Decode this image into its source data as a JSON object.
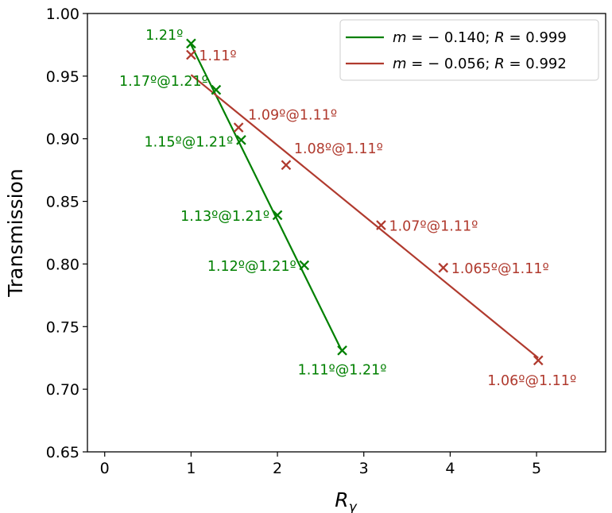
{
  "chart_data": {
    "type": "scatter",
    "title": "",
    "xlabel": "R_γ",
    "ylabel": "Transmission",
    "xlim": [
      -0.2,
      5.8
    ],
    "ylim": [
      0.65,
      1.0
    ],
    "xticks": [
      0,
      1,
      2,
      3,
      4,
      5
    ],
    "yticks": [
      0.65,
      0.7,
      0.75,
      0.8,
      0.85,
      0.9,
      0.95,
      1.0
    ],
    "xtick_labels": [
      "0",
      "1",
      "2",
      "3",
      "4",
      "5"
    ],
    "ytick_labels": [
      "0.65",
      "0.70",
      "0.75",
      "0.80",
      "0.85",
      "0.90",
      "0.95",
      "1.00"
    ],
    "grid": false,
    "legend_position": "top-right",
    "series": [
      {
        "name": "m = −0.140;  R = 0.999",
        "legend": {
          "m_label": "m",
          "m_value": "− 0.140;",
          "r_label": "R",
          "r_value": "0.999"
        },
        "color": "#008000",
        "points": [
          {
            "x": 1.0,
            "y": 0.976,
            "label": "1.21º"
          },
          {
            "x": 1.29,
            "y": 0.939,
            "label": "1.17º@1.21º"
          },
          {
            "x": 1.58,
            "y": 0.899,
            "label": "1.15º@1.21º"
          },
          {
            "x": 2.0,
            "y": 0.839,
            "label": "1.13º@1.21º"
          },
          {
            "x": 2.31,
            "y": 0.799,
            "label": "1.12º@1.21º"
          },
          {
            "x": 2.75,
            "y": 0.731,
            "label": "1.11º@1.21º"
          }
        ],
        "fit_line": {
          "x": [
            1.0,
            2.75
          ],
          "y": [
            0.975,
            0.73
          ]
        }
      },
      {
        "name": "m = −0.056;  R = 0.992",
        "legend": {
          "m_label": "m",
          "m_value": "− 0.056;",
          "r_label": "R",
          "r_value": "0.992"
        },
        "color": "#b03a2e",
        "points": [
          {
            "x": 1.0,
            "y": 0.967,
            "label": "1.11º"
          },
          {
            "x": 1.55,
            "y": 0.909,
            "label": "1.09º@1.11º"
          },
          {
            "x": 2.1,
            "y": 0.879,
            "label": "1.08º@1.11º"
          },
          {
            "x": 3.2,
            "y": 0.831,
            "label": "1.07º@1.11º"
          },
          {
            "x": 3.92,
            "y": 0.797,
            "label": "1.065º@1.11º"
          },
          {
            "x": 5.02,
            "y": 0.723,
            "label": "1.06º@1.11º"
          }
        ],
        "fit_line": {
          "x": [
            1.0,
            5.02
          ],
          "y": [
            0.951,
            0.725
          ]
        }
      }
    ]
  }
}
